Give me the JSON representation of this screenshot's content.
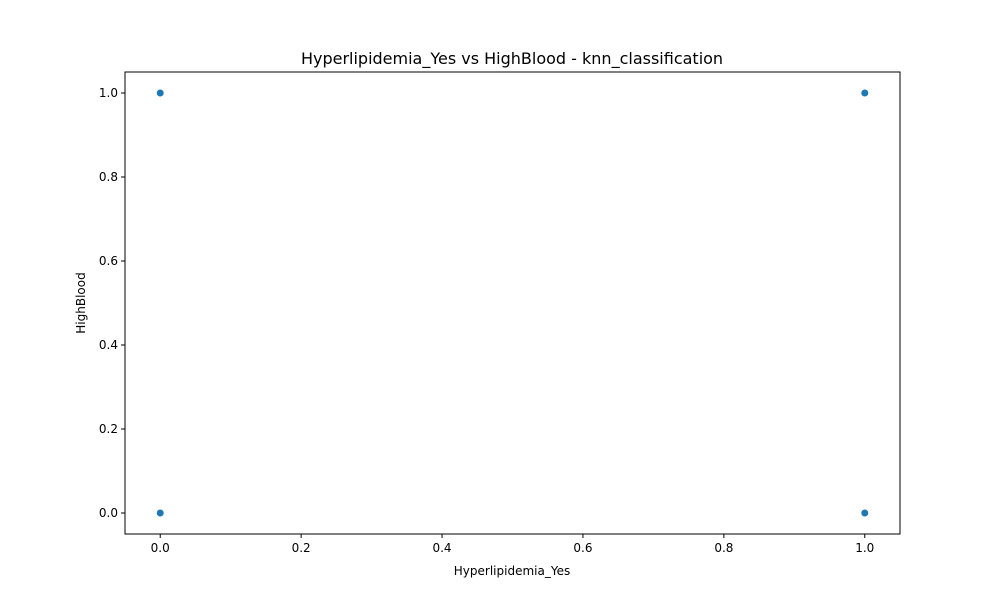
{
  "chart_data": {
    "type": "scatter",
    "title": "Hyperlipidemia_Yes vs HighBlood - knn_classification",
    "xlabel": "Hyperlipidemia_Yes",
    "ylabel": "HighBlood",
    "xlim": [
      -0.05,
      1.05
    ],
    "ylim": [
      -0.05,
      1.05
    ],
    "xticks": [
      0.0,
      0.2,
      0.4,
      0.6,
      0.8,
      1.0
    ],
    "yticks": [
      0.0,
      0.2,
      0.4,
      0.6,
      0.8,
      1.0
    ],
    "xtick_labels": [
      "0.0",
      "0.2",
      "0.4",
      "0.6",
      "0.8",
      "1.0"
    ],
    "ytick_labels": [
      "0.0",
      "0.2",
      "0.4",
      "0.6",
      "0.8",
      "1.0"
    ],
    "grid": false,
    "point_color": "#1f77b4",
    "points": [
      {
        "x": 0,
        "y": 1
      },
      {
        "x": 1,
        "y": 1
      },
      {
        "x": 0,
        "y": 0
      },
      {
        "x": 1,
        "y": 0
      }
    ]
  }
}
